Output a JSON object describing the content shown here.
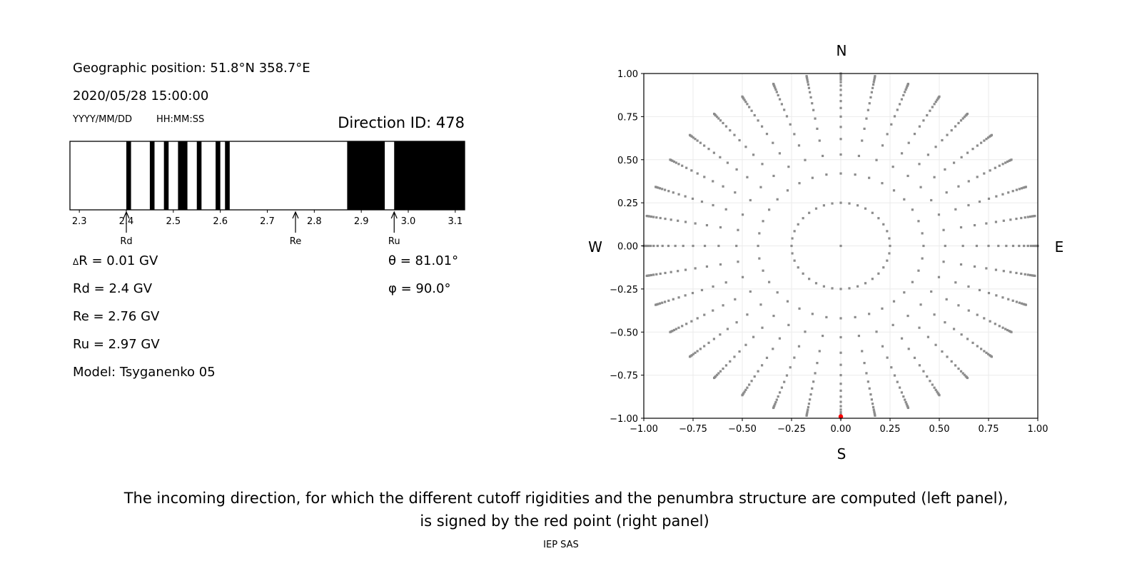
{
  "header": {
    "position": "Geographic position: 51.8°N 358.7°E",
    "datetime": "2020/05/28 15:00:00",
    "date_format": "YYYY/MM/DD",
    "time_format": "HH:MM:SS",
    "direction_id": "Direction ID: 478"
  },
  "params": {
    "dR_symbol": "Δ",
    "dR": "R = 0.01 GV",
    "Rd": "Rd = 2.4 GV",
    "Re": "Re = 2.76 GV",
    "Ru": "Ru = 2.97 GV",
    "model": "Model: Tsyganenko 05",
    "theta": "θ = 81.01°",
    "phi": "φ = 90.0°"
  },
  "caption": {
    "line1": "The incoming direction, for which the different cutoff rigidities and the penumbra structure are computed (left panel),",
    "line2": "is signed by the red point (right panel)",
    "credit": "IEP SAS"
  },
  "chart_data": [
    {
      "type": "bar",
      "description_kind": "penumbra",
      "xlim": [
        2.28,
        3.12
      ],
      "xticks": [
        "2.3",
        "2.4",
        "2.5",
        "2.6",
        "2.7",
        "2.8",
        "2.9",
        "3.0",
        "3.1"
      ],
      "allowed_intervals": [
        [
          2.4,
          2.41
        ],
        [
          2.45,
          2.46
        ],
        [
          2.48,
          2.49
        ],
        [
          2.51,
          2.53
        ],
        [
          2.55,
          2.56
        ],
        [
          2.59,
          2.6
        ],
        [
          2.61,
          2.62
        ],
        [
          2.87,
          2.95
        ],
        [
          2.97,
          3.12
        ]
      ],
      "markers": [
        {
          "label": "Rd",
          "value": 2.4
        },
        {
          "label": "Re",
          "value": 2.76
        },
        {
          "label": "Ru",
          "value": 2.97
        }
      ],
      "colors": {
        "allowed": "#000000",
        "forbidden": "#ffffff"
      }
    },
    {
      "type": "scatter",
      "xlim": [
        -1,
        1
      ],
      "ylim": [
        -1,
        1
      ],
      "xticks": [
        "−1.00",
        "−0.75",
        "−0.50",
        "−0.25",
        "0.00",
        "0.25",
        "0.50",
        "0.75",
        "1.00"
      ],
      "yticks": [
        "−1.00",
        "−0.75",
        "−0.50",
        "−0.25",
        "0.00",
        "0.25",
        "0.50",
        "0.75",
        "1.00"
      ],
      "grid": true,
      "compass": {
        "N": "N",
        "S": "S",
        "E": "E",
        "W": "W"
      },
      "direction_grid": {
        "azimuth_step_deg": 10,
        "radii": [
          0.25,
          0.42,
          0.53,
          0.62,
          0.69,
          0.75,
          0.8,
          0.84,
          0.875,
          0.905,
          0.93,
          0.95,
          0.965,
          0.977,
          0.987,
          0.994,
          1.0
        ],
        "center_point": [
          0,
          0
        ]
      },
      "selected_point": {
        "x": 0.0,
        "y": -0.99
      },
      "colors": {
        "points": "#8c8c8c",
        "selected": "#ff0000",
        "grid": "#ebebeb"
      }
    }
  ]
}
